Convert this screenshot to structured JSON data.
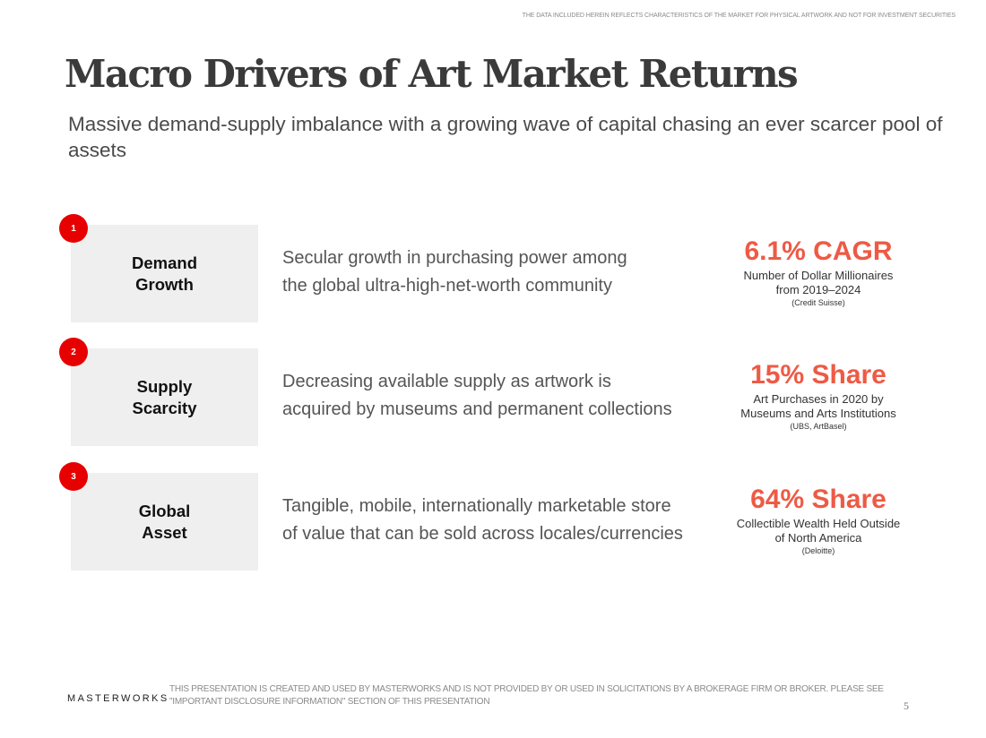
{
  "top_disclaimer": "THE DATA INCLUDED HEREIN REFLECTS CHARACTERISTICS OF THE MARKET FOR PHYSICAL ARTWORK AND NOT FOR INVESTMENT SECURITIES",
  "title": "Macro Drivers of Art Market Returns",
  "subtitle": "Massive demand-supply imbalance with a growing wave of capital chasing an ever scarcer pool of assets",
  "rows": [
    {
      "number": "1",
      "label": "Demand\nGrowth",
      "description": "Secular growth in purchasing power among\nthe global ultra-high-net-worth community",
      "stat_value": "6.1% CAGR",
      "stat_label": "Number of Dollar Millionaires\nfrom 2019–2024",
      "stat_source": "(Credit Suisse)"
    },
    {
      "number": "2",
      "label": "Supply\nScarcity",
      "description": "Decreasing available supply as artwork is\nacquired by museums and permanent collections",
      "stat_value": "15% Share",
      "stat_label": "Art Purchases in 2020 by\nMuseums and Arts Institutions",
      "stat_source": "(UBS, ArtBasel)"
    },
    {
      "number": "3",
      "label": "Global\nAsset",
      "description": "Tangible, mobile, internationally marketable store\nof value that can be sold across locales/currencies",
      "stat_value": "64% Share",
      "stat_label": "Collectible Wealth Held Outside\nof North America",
      "stat_source": "(Deloitte)"
    }
  ],
  "footer": {
    "logo": "MASTERWORKS",
    "disclaimer": "THIS PRESENTATION  IS CREATED AND USED BY MASTERWORKS AND IS NOT PROVIDED BY OR USED IN SOLICITATIONS BY A BROKERAGE FIRM OR BROKER. PLEASE SEE \"IMPORTANT DISCLOSURE INFORMATION\" SECTION OF THIS PRESENTATION",
    "page_number": "5"
  },
  "colors": {
    "accent": "#ee5a45",
    "badge": "#e60000",
    "box": "#efefef"
  }
}
